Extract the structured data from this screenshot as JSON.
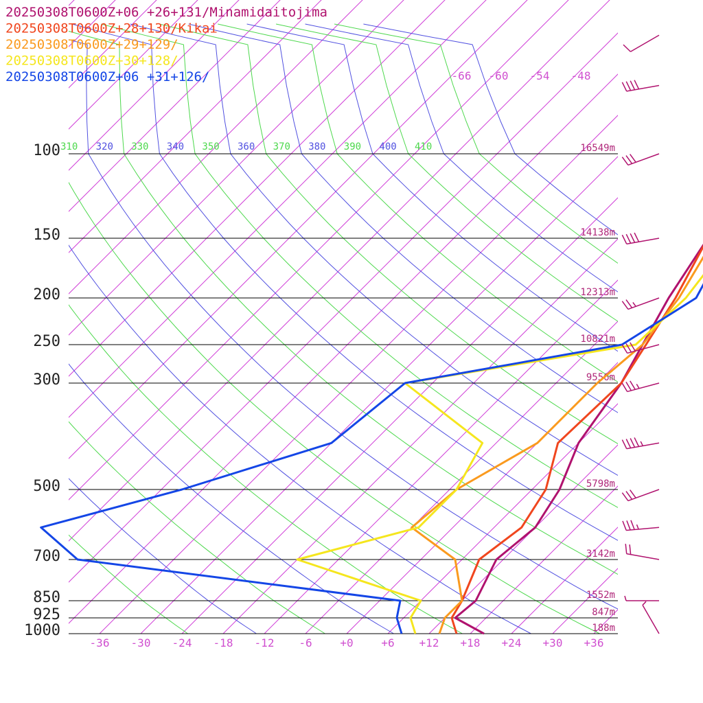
{
  "chart_data": {
    "type": "line",
    "title": "",
    "xlabel": "",
    "ylabel": "",
    "x_axis_ticks": [
      "-36",
      "-30",
      "-24",
      "-18",
      "-12",
      "-6",
      "+0",
      "+6",
      "+12",
      "+18",
      "+24",
      "+30",
      "+36"
    ],
    "upper_temp_ticks": [
      "-66",
      "-60",
      "-54",
      "-48"
    ],
    "pressure_levels": [
      "100",
      "150",
      "200",
      "250",
      "300",
      "500",
      "700",
      "850",
      "925",
      "1000"
    ],
    "height_labels": [
      "16549m",
      "14138m",
      "12313m",
      "10821m",
      "9556m",
      "5798m",
      "3142m",
      "1552m",
      "847m",
      "188m"
    ],
    "theta_labels": [
      {
        "text": "310",
        "color": "#4cd84c"
      },
      {
        "text": "320",
        "color": "#5050e0"
      },
      {
        "text": "330",
        "color": "#4cd84c"
      },
      {
        "text": "340",
        "color": "#5050e0"
      },
      {
        "text": "350",
        "color": "#4cd84c"
      },
      {
        "text": "360",
        "color": "#5050e0"
      },
      {
        "text": "370",
        "color": "#4cd84c"
      },
      {
        "text": "380",
        "color": "#5050e0"
      },
      {
        "text": "390",
        "color": "#4cd84c"
      },
      {
        "text": "400",
        "color": "#5050e0"
      },
      {
        "text": "410",
        "color": "#4cd84c"
      }
    ],
    "legend_position": "top-left",
    "series": [
      {
        "name": "20250308T0600Z+06 +26+131/Minamidaitojima",
        "color": "#b0126e",
        "profile": [
          [
            1000,
            20
          ],
          [
            925,
            13.5
          ],
          [
            850,
            14
          ],
          [
            700,
            11
          ],
          [
            600,
            12
          ],
          [
            500,
            10
          ],
          [
            400,
            6
          ],
          [
            300,
            3.5
          ],
          [
            250,
            1
          ],
          [
            200,
            -2
          ],
          [
            150,
            -5
          ],
          [
            120,
            -7
          ],
          [
            100,
            -8
          ],
          [
            70,
            -3
          ],
          [
            50,
            15
          ]
        ]
      },
      {
        "name": "20250308T0600Z+28+130/Kikai",
        "color": "#f0461e",
        "profile": [
          [
            1000,
            16
          ],
          [
            925,
            13
          ],
          [
            850,
            12
          ],
          [
            700,
            8.5
          ],
          [
            600,
            10
          ],
          [
            500,
            8
          ],
          [
            400,
            3
          ],
          [
            300,
            3.5
          ],
          [
            250,
            1.5
          ],
          [
            200,
            -1
          ],
          [
            150,
            -5
          ],
          [
            120,
            -8
          ],
          [
            100,
            -6
          ],
          [
            70,
            0
          ],
          [
            50,
            17
          ]
        ]
      },
      {
        "name": "20250308T0600Z+29+129/",
        "color": "#fa9a1e",
        "profile": [
          [
            1000,
            13.5
          ],
          [
            925,
            12
          ],
          [
            850,
            12
          ],
          [
            700,
            5
          ],
          [
            600,
            -6
          ],
          [
            500,
            -5
          ],
          [
            400,
            0
          ],
          [
            300,
            0
          ],
          [
            250,
            1
          ],
          [
            200,
            -0.5
          ],
          [
            150,
            -4
          ],
          [
            120,
            -5
          ],
          [
            100,
            -3
          ],
          [
            70,
            3
          ],
          [
            50,
            18
          ]
        ]
      },
      {
        "name": "20250308T0600Z+30+128/",
        "color": "#f5e61e",
        "profile": [
          [
            1000,
            10
          ],
          [
            925,
            7
          ],
          [
            850,
            6
          ],
          [
            700,
            -18
          ],
          [
            600,
            -5
          ],
          [
            500,
            -5
          ],
          [
            400,
            -8
          ],
          [
            300,
            -28
          ],
          [
            250,
            0
          ],
          [
            200,
            0.5
          ],
          [
            150,
            -1.5
          ],
          [
            120,
            -2
          ],
          [
            100,
            -1
          ],
          [
            70,
            5
          ],
          [
            50,
            20
          ]
        ]
      },
      {
        "name": "20250308T0600Z+06 +31+126/",
        "color": "#1446e6",
        "profile": [
          [
            1000,
            8
          ],
          [
            925,
            5
          ],
          [
            850,
            3
          ],
          [
            700,
            -50
          ],
          [
            600,
            -60
          ],
          [
            500,
            -45
          ],
          [
            400,
            -30
          ],
          [
            300,
            -28
          ],
          [
            250,
            -2
          ],
          [
            200,
            2
          ],
          [
            150,
            -2
          ],
          [
            120,
            -1
          ],
          [
            100,
            0
          ],
          [
            70,
            7
          ],
          [
            50,
            22
          ]
        ]
      }
    ],
    "wind_barbs": [
      {
        "p": 60,
        "dir": 240,
        "speed": 10
      },
      {
        "p": 80,
        "dir": 260,
        "speed": 40
      },
      {
        "p": 100,
        "dir": 250,
        "speed": 30
      },
      {
        "p": 150,
        "dir": 260,
        "speed": 40
      },
      {
        "p": 200,
        "dir": 250,
        "speed": 25
      },
      {
        "p": 250,
        "dir": 255,
        "speed": 30
      },
      {
        "p": 300,
        "dir": 255,
        "speed": 35
      },
      {
        "p": 400,
        "dir": 260,
        "speed": 45
      },
      {
        "p": 500,
        "dir": 250,
        "speed": 30
      },
      {
        "p": 600,
        "dir": 265,
        "speed": 35
      },
      {
        "p": 700,
        "dir": 280,
        "speed": 20
      },
      {
        "p": 850,
        "dir": 270,
        "speed": 5
      },
      {
        "p": 1000,
        "dir": 330,
        "speed": 5
      }
    ]
  }
}
